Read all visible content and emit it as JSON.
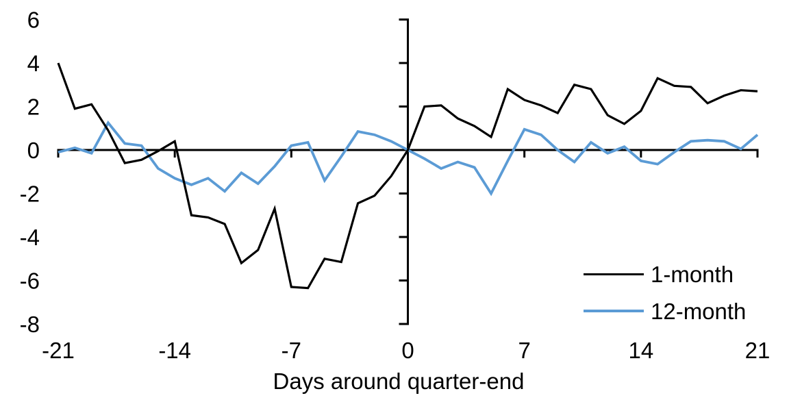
{
  "chart_data": {
    "type": "line",
    "title": "",
    "xlabel": "Days around quarter-end",
    "ylabel": "",
    "xlim": [
      -21,
      21
    ],
    "ylim": [
      -8,
      6
    ],
    "x_ticks": [
      -21,
      -14,
      -7,
      0,
      7,
      14,
      21
    ],
    "y_ticks": [
      6,
      4,
      2,
      0,
      -2,
      -4,
      -6,
      -8
    ],
    "grid": false,
    "legend_position": "bottom-right",
    "axis_color": "#000000",
    "x": [
      -21,
      -20,
      -19,
      -18,
      -17,
      -16,
      -15,
      -14,
      -13,
      -12,
      -11,
      -10,
      -9,
      -8,
      -7,
      -6,
      -5,
      -4,
      -3,
      -2,
      -1,
      0,
      1,
      2,
      3,
      4,
      5,
      6,
      7,
      8,
      9,
      10,
      11,
      12,
      13,
      14,
      15,
      16,
      17,
      18,
      19,
      20,
      21
    ],
    "series": [
      {
        "name": "1-month",
        "color": "#000000",
        "values": [
          4.0,
          1.9,
          2.1,
          0.9,
          -0.6,
          -0.45,
          -0.05,
          0.4,
          -3.0,
          -3.1,
          -3.4,
          -5.2,
          -4.6,
          -2.7,
          -6.3,
          -6.35,
          -5.0,
          -5.15,
          -2.45,
          -2.1,
          -1.2,
          0.0,
          2.0,
          2.05,
          1.45,
          1.1,
          0.6,
          2.8,
          2.3,
          2.05,
          1.7,
          3.0,
          2.8,
          1.6,
          1.2,
          1.8,
          3.3,
          2.95,
          2.9,
          2.15,
          2.5,
          2.75,
          2.7
        ]
      },
      {
        "name": "12-month",
        "color": "#5B9BD5",
        "values": [
          -0.1,
          0.1,
          -0.15,
          1.25,
          0.3,
          0.2,
          -0.85,
          -1.3,
          -1.6,
          -1.3,
          -1.9,
          -1.05,
          -1.55,
          -0.75,
          0.2,
          0.35,
          -1.4,
          -0.3,
          0.85,
          0.7,
          0.4,
          0.0,
          -0.4,
          -0.85,
          -0.55,
          -0.8,
          -2.0,
          -0.5,
          0.95,
          0.7,
          0.0,
          -0.55,
          0.35,
          -0.15,
          0.15,
          -0.5,
          -0.65,
          -0.1,
          0.4,
          0.45,
          0.4,
          0.05,
          0.7
        ]
      }
    ]
  }
}
